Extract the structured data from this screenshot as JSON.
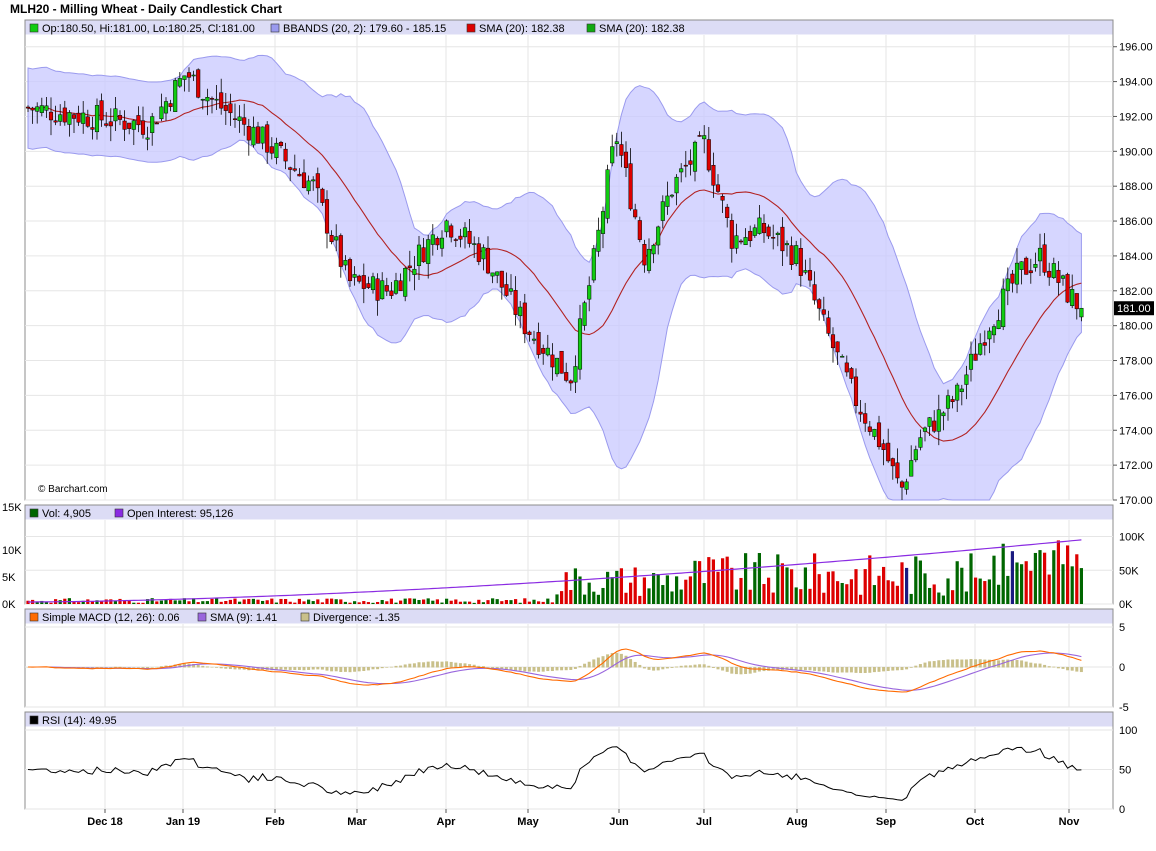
{
  "title": "MLH20 - Milling Wheat - Daily Candlestick Chart",
  "watermark": "© Barchart.com",
  "colors": {
    "up": "#11cc11",
    "down": "#dd0000",
    "band_fill": "#c8c8ff",
    "band_line": "#9a9aee",
    "sma": "#b22222",
    "volume_up": "#006600",
    "volume_down": "#dd0000",
    "volume_blue": "#1a1a80",
    "open_interest": "#8a2be2",
    "macd": "#ff6a00",
    "macd_signal": "#9966dd",
    "divergence": "#c9c08a",
    "rsi": "#000000",
    "legend_bg": "#dcdcf5"
  },
  "price_panel": {
    "legend": [
      {
        "text": "Op:180.50, Hi:181.00, Lo:180.25, Cl:181.00",
        "swatch": "#11cc11"
      },
      {
        "text": "BBANDS (20, 2): 179.60 - 185.15",
        "swatch": "#9a9aee"
      },
      {
        "text": "SMA (20): 182.38",
        "swatch": "#dd0000"
      },
      {
        "text": "SMA (20): 182.38",
        "swatch": "#11aa11"
      }
    ],
    "last_price": "181.00",
    "y_ticks": [
      "196.00",
      "194.00",
      "192.00",
      "190.00",
      "188.00",
      "186.00",
      "184.00",
      "182.00",
      "180.00",
      "178.00",
      "176.00",
      "174.00",
      "172.00",
      "170.00"
    ]
  },
  "volume_panel": {
    "legend": [
      {
        "text": "Vol: 4,905",
        "swatch": "#006600"
      },
      {
        "text": "Open Interest: 95,126",
        "swatch": "#8a2be2"
      }
    ],
    "left_ticks": [
      "15K",
      "10K",
      "5K",
      "0K"
    ],
    "right_ticks": [
      "100K",
      "50K",
      "0K"
    ]
  },
  "macd_panel": {
    "legend": [
      {
        "text": "Simple MACD (12, 26): 0.06",
        "swatch": "#ff6a00"
      },
      {
        "text": "SMA (9): 1.41",
        "swatch": "#9966dd"
      },
      {
        "text": "Divergence: -1.35",
        "swatch": "#c9c08a"
      }
    ],
    "y_ticks": [
      "5",
      "0",
      "-5"
    ]
  },
  "rsi_panel": {
    "legend": [
      {
        "text": "RSI (14): 49.95",
        "swatch": "#000000"
      }
    ],
    "y_ticks": [
      "100",
      "50",
      "0"
    ]
  },
  "x_labels": [
    "Dec 18",
    "Jan 19",
    "Feb",
    "Mar",
    "Apr",
    "May",
    "Jun",
    "Jul",
    "Aug",
    "Sep",
    "Oct",
    "Nov"
  ],
  "chart_data": {
    "type": "candlestick",
    "title": "MLH20 - Milling Wheat - Daily Candlestick Chart",
    "instrument": "MLH20",
    "last_bar": {
      "open": 180.5,
      "high": 181.0,
      "low": 180.25,
      "close": 181.0
    },
    "price_ylim": [
      170,
      196.5
    ],
    "close_path": [
      {
        "x": "Nov 27",
        "close": 192.5
      },
      {
        "x": "Dec 18",
        "close": 191.5
      },
      {
        "x": "Jan 2",
        "close": 194.5
      },
      {
        "x": "Jan 10",
        "close": 193.0
      },
      {
        "x": "Jan 25",
        "close": 191.0
      },
      {
        "x": "Feb 15",
        "close": 188.0
      },
      {
        "x": "Feb 28",
        "close": 182.5
      },
      {
        "x": "Mar 12",
        "close": 182.0
      },
      {
        "x": "Apr 1",
        "close": 186.0
      },
      {
        "x": "Apr 15",
        "close": 184.0
      },
      {
        "x": "Apr 30",
        "close": 180.0
      },
      {
        "x": "May 15",
        "close": 177.0
      },
      {
        "x": "May 22",
        "close": 183.0
      },
      {
        "x": "May 30",
        "close": 191.0
      },
      {
        "x": "Jun 10",
        "close": 184.0
      },
      {
        "x": "Jun 20",
        "close": 188.0
      },
      {
        "x": "Jul 1",
        "close": 190.5
      },
      {
        "x": "Jul 10",
        "close": 185.0
      },
      {
        "x": "Jul 20",
        "close": 185.5
      },
      {
        "x": "Jul 31",
        "close": 184.0
      },
      {
        "x": "Aug 10",
        "close": 180.0
      },
      {
        "x": "Aug 20",
        "close": 176.0
      },
      {
        "x": "Aug 30",
        "close": 173.0
      },
      {
        "x": "Sep 6",
        "close": 170.5
      },
      {
        "x": "Sep 12",
        "close": 173.5
      },
      {
        "x": "Sep 25",
        "close": 176.0
      },
      {
        "x": "Oct 5",
        "close": 180.0
      },
      {
        "x": "Oct 15",
        "close": 183.0
      },
      {
        "x": "Oct 22",
        "close": 184.0
      },
      {
        "x": "Oct 30",
        "close": 182.0
      },
      {
        "x": "Nov 5",
        "close": 181.0
      }
    ],
    "indicators": {
      "bbands": {
        "period": 20,
        "stddev": 2,
        "lower": 179.6,
        "upper": 185.15
      },
      "sma20": 182.38,
      "volume_last": 4905,
      "open_interest_last": 95126,
      "macd": {
        "value": 0.06,
        "signal": 1.41,
        "divergence": -1.35
      },
      "rsi14": 49.95
    },
    "volume_ylim": [
      0,
      15000
    ],
    "open_interest_ylim": [
      0,
      120000
    ],
    "macd_ylim": [
      -5,
      5
    ],
    "rsi_ylim": [
      0,
      100
    ]
  }
}
